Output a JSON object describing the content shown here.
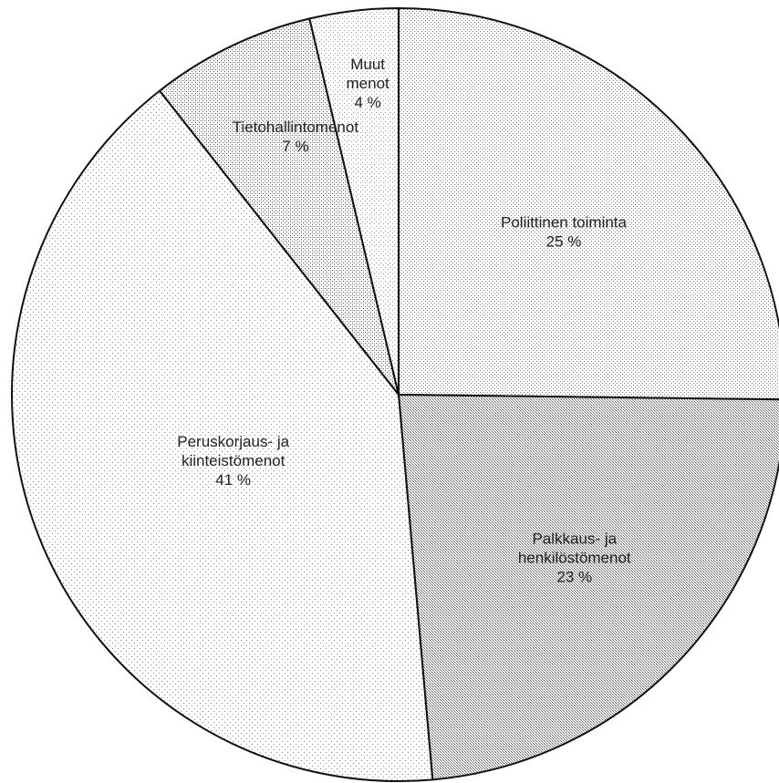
{
  "chart_data": {
    "type": "pie",
    "title": "",
    "start": "12 o'clock",
    "direction": "clockwise",
    "slices": [
      {
        "label_lines": [
          "Poliittinen toiminta"
        ],
        "value_label": "25 %",
        "value": 25.2,
        "pattern": "light-dots"
      },
      {
        "label_lines": [
          "Palkkaus- ja",
          "henkilöstömenot"
        ],
        "value_label": "23 %",
        "value": 23.4,
        "pattern": "dense-crosshatch"
      },
      {
        "label_lines": [
          "Peruskorjaus- ja",
          "kiinteistömenot"
        ],
        "value_label": "41 %",
        "value": 40.8,
        "pattern": "sparse-dots"
      },
      {
        "label_lines": [
          "Tietohallintomenot"
        ],
        "value_label": "7 %",
        "value": 6.9,
        "pattern": "medium-dots"
      },
      {
        "label_lines": [
          "Muut",
          "menot"
        ],
        "value_label": "4 %",
        "value": 3.7,
        "pattern": "very-light-dots"
      }
    ],
    "colors": {
      "outline": "#111111",
      "background": "#ffffff",
      "pattern_dot": "#555555"
    }
  }
}
